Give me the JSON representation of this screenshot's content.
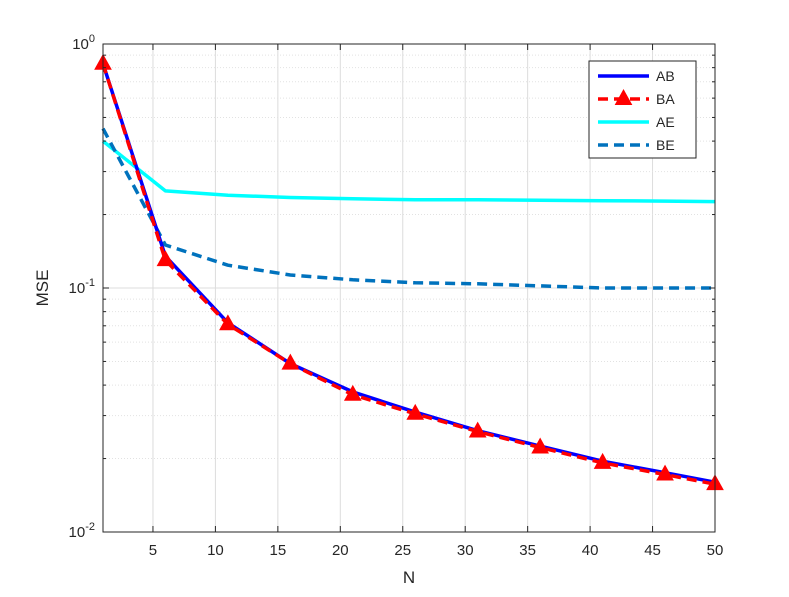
{
  "chart_data": {
    "type": "line",
    "title": "",
    "xlabel": "N",
    "ylabel": "MSE",
    "xlim": [
      1,
      50
    ],
    "ylim": [
      0.01,
      1
    ],
    "yscale": "log",
    "grid": true,
    "minor_grid": true,
    "legend_position": "top-right",
    "x_ticks": [
      5,
      10,
      15,
      20,
      25,
      30,
      35,
      40,
      45,
      50
    ],
    "y_ticks": [
      {
        "value": 0.01,
        "base": "10",
        "exp": "-2"
      },
      {
        "value": 0.1,
        "base": "10",
        "exp": "-1"
      },
      {
        "value": 1,
        "base": "10",
        "exp": "0"
      }
    ],
    "series": [
      {
        "name": "AB",
        "color": "#0000ff",
        "style": "solid",
        "marker": "none",
        "x": [
          1,
          6,
          11,
          16,
          21,
          26,
          31,
          36,
          41,
          46,
          50
        ],
        "y": [
          0.83,
          0.135,
          0.072,
          0.049,
          0.0375,
          0.031,
          0.026,
          0.0225,
          0.0195,
          0.0175,
          0.016
        ]
      },
      {
        "name": "BA",
        "color": "#ff0000",
        "style": "dashed",
        "marker": "triangle",
        "x": [
          1,
          6,
          11,
          16,
          21,
          26,
          31,
          36,
          41,
          46,
          50
        ],
        "y": [
          0.83,
          0.13,
          0.071,
          0.049,
          0.0365,
          0.0305,
          0.0258,
          0.0222,
          0.0192,
          0.0172,
          0.0157
        ]
      },
      {
        "name": "AE",
        "color": "#00ffff",
        "style": "solid",
        "marker": "none",
        "x": [
          1,
          6,
          11,
          16,
          21,
          26,
          31,
          36,
          41,
          46,
          50
        ],
        "y": [
          0.4,
          0.25,
          0.24,
          0.235,
          0.232,
          0.23,
          0.23,
          0.229,
          0.228,
          0.227,
          0.226
        ]
      },
      {
        "name": "BE",
        "color": "#0072bd",
        "style": "dashed",
        "marker": "none",
        "x": [
          1,
          6,
          11,
          16,
          21,
          26,
          31,
          36,
          41,
          46,
          50
        ],
        "y": [
          0.45,
          0.15,
          0.124,
          0.113,
          0.108,
          0.105,
          0.104,
          0.102,
          0.1,
          0.1,
          0.1
        ]
      }
    ]
  }
}
